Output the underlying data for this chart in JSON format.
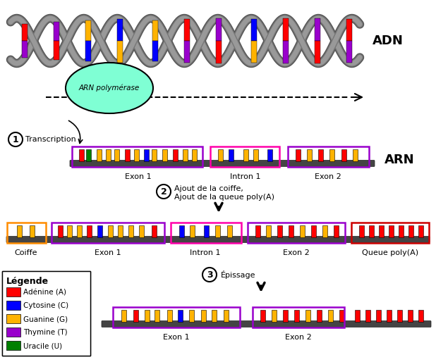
{
  "colors": {
    "adenine": "#FF0000",
    "cytosine": "#0000FF",
    "guanine": "#FFB300",
    "thymine": "#9900CC",
    "uracile": "#008000",
    "polymerase": "#7FFFD4",
    "backbone": "#555555",
    "background": "#FFFFFF"
  },
  "legend": {
    "title": "Légende",
    "items": [
      "Adénine (A)",
      "Cytosine (C)",
      "Guanine (G)",
      "Thymine (T)",
      "Uracile (U)"
    ],
    "colors": [
      "#FF0000",
      "#0000FF",
      "#FFB300",
      "#9900CC",
      "#008000"
    ]
  },
  "labels": {
    "adn": "ADN",
    "arn": "ARN",
    "polymerase": "ARN polymérase",
    "transcription": "Transcription",
    "step2_line1": "Ajout de la coiffe,",
    "step2_line2": "Ajout de la queue poly(A)",
    "step3_text": "Épissage",
    "exon1": "Exon 1",
    "intron1": "Intron 1",
    "exon2": "Exon 2",
    "coiffe": "Coiffe",
    "queue": "Queue poly(A)"
  }
}
